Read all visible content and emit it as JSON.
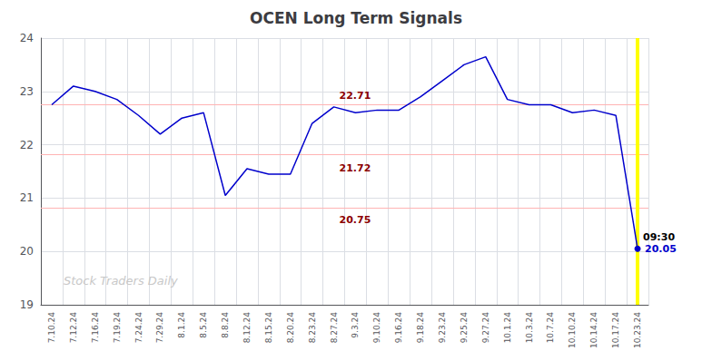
{
  "chart_data": {
    "type": "line",
    "title": "OCEN Long Term Signals",
    "categories": [
      "7.10.24",
      "7.12.24",
      "7.16.24",
      "7.19.24",
      "7.24.24",
      "7.29.24",
      "8.1.24",
      "8.5.24",
      "8.8.24",
      "8.12.24",
      "8.15.24",
      "8.20.24",
      "8.23.24",
      "8.27.24",
      "9.3.24",
      "9.10.24",
      "9.16.24",
      "9.18.24",
      "9.23.24",
      "9.25.24",
      "9.27.24",
      "10.1.24",
      "10.3.24",
      "10.7.24",
      "10.10.24",
      "10.14.24",
      "10.17.24",
      "10.23.24"
    ],
    "values": [
      22.75,
      23.1,
      23.0,
      22.85,
      22.55,
      22.2,
      22.5,
      22.6,
      21.05,
      21.55,
      21.45,
      21.45,
      22.4,
      22.71,
      22.6,
      22.65,
      22.65,
      22.9,
      23.2,
      23.5,
      23.65,
      22.85,
      22.75,
      22.75,
      22.6,
      22.65,
      22.55,
      20.05
    ],
    "color": "#0000cc",
    "ylim": [
      19.0,
      24.0
    ],
    "yticks": [
      19,
      20,
      21,
      22,
      23,
      24
    ],
    "grid": true,
    "reference_lines": [
      {
        "axis": "y",
        "value": 22.75,
        "color": "#ffb3b3"
      },
      {
        "axis": "y",
        "value": 21.82,
        "color": "#ffb3b3"
      },
      {
        "axis": "y",
        "value": 20.82,
        "color": "#ffb3b3"
      },
      {
        "axis": "x",
        "value": "10.23.24",
        "color": "#ffff00"
      }
    ],
    "annotations": [
      {
        "text": "22.71",
        "x": "8.27.24",
        "y": 22.71,
        "color": "#8b0000",
        "position": "above"
      },
      {
        "text": "21.72",
        "x": "8.27.24",
        "y": 21.72,
        "color": "#8b0000",
        "position": "below"
      },
      {
        "text": "20.75",
        "x": "8.27.24",
        "y": 20.75,
        "color": "#8b0000",
        "position": "below"
      },
      {
        "text": "09:30",
        "x": "10.23.24",
        "y": 20.05,
        "color": "#000000",
        "position": "above"
      },
      {
        "text": "20.05",
        "x": "10.23.24",
        "y": 20.05,
        "color": "#0000cc",
        "position": "right"
      },
      {
        "text": "Stock Traders Daily",
        "color": "#c8c8c8"
      }
    ]
  }
}
